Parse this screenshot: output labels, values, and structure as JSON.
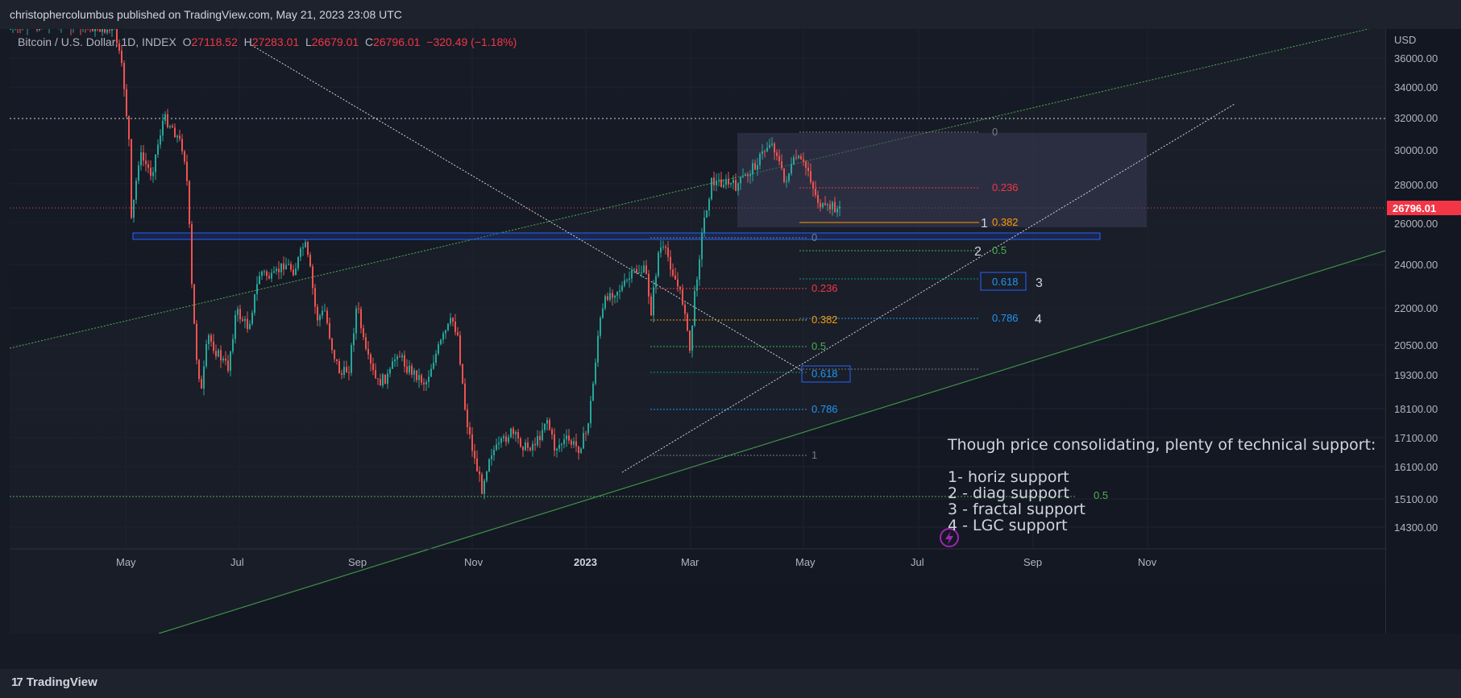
{
  "header": {
    "published_text": "christophercolumbus published on TradingView.com, May 21, 2023 23:08 UTC"
  },
  "legend": {
    "symbol": "Bitcoin / U.S. Dollar, 1D, INDEX",
    "open_label": "O",
    "open": "27118.52",
    "high_label": "H",
    "high": "27283.01",
    "low_label": "L",
    "low": "26679.01",
    "close_label": "C",
    "close": "26796.01",
    "change": "−320.49 (−1.18%)"
  },
  "axis": {
    "currency": "USD",
    "last_price": "26796.01",
    "y_ticks": [
      "36000.00",
      "34000.00",
      "32000.00",
      "30000.00",
      "28000.00",
      "26000.00",
      "24000.00",
      "22000.00",
      "20500.00",
      "19300.00",
      "18100.00",
      "17100.00",
      "16100.00",
      "15100.00",
      "14300.00"
    ],
    "x_ticks": [
      "May",
      "Jul",
      "Sep",
      "Nov",
      "2023",
      "Mar",
      "May",
      "Jul",
      "Sep",
      "Nov"
    ]
  },
  "fib_upper": {
    "levels": [
      "0",
      "0.236",
      "0.382",
      "0.5",
      "0.618",
      "0.786"
    ]
  },
  "fib_lower": {
    "levels": [
      "0",
      "0.236",
      "0.382",
      "0.5",
      "0.618",
      "0.786",
      "1"
    ]
  },
  "fib_bottom_level": "0.5",
  "markers": [
    "1",
    "2",
    "3",
    "4"
  ],
  "annotation": {
    "title": "Though price consolidating, plenty of technical support:",
    "items": [
      "1- horiz support",
      "2 - diag support",
      "3 - fractal support",
      "4 - LGC support"
    ]
  },
  "footer": {
    "brand": "TradingView"
  },
  "colors": {
    "bull": "#26a69a",
    "bear": "#ef5350",
    "fib_red": "#f23645",
    "fib_orange": "#ff9800",
    "fib_green": "#4caf50",
    "fib_teal": "#089981",
    "fib_blue": "#2196f3",
    "gray": "#787b86"
  }
}
